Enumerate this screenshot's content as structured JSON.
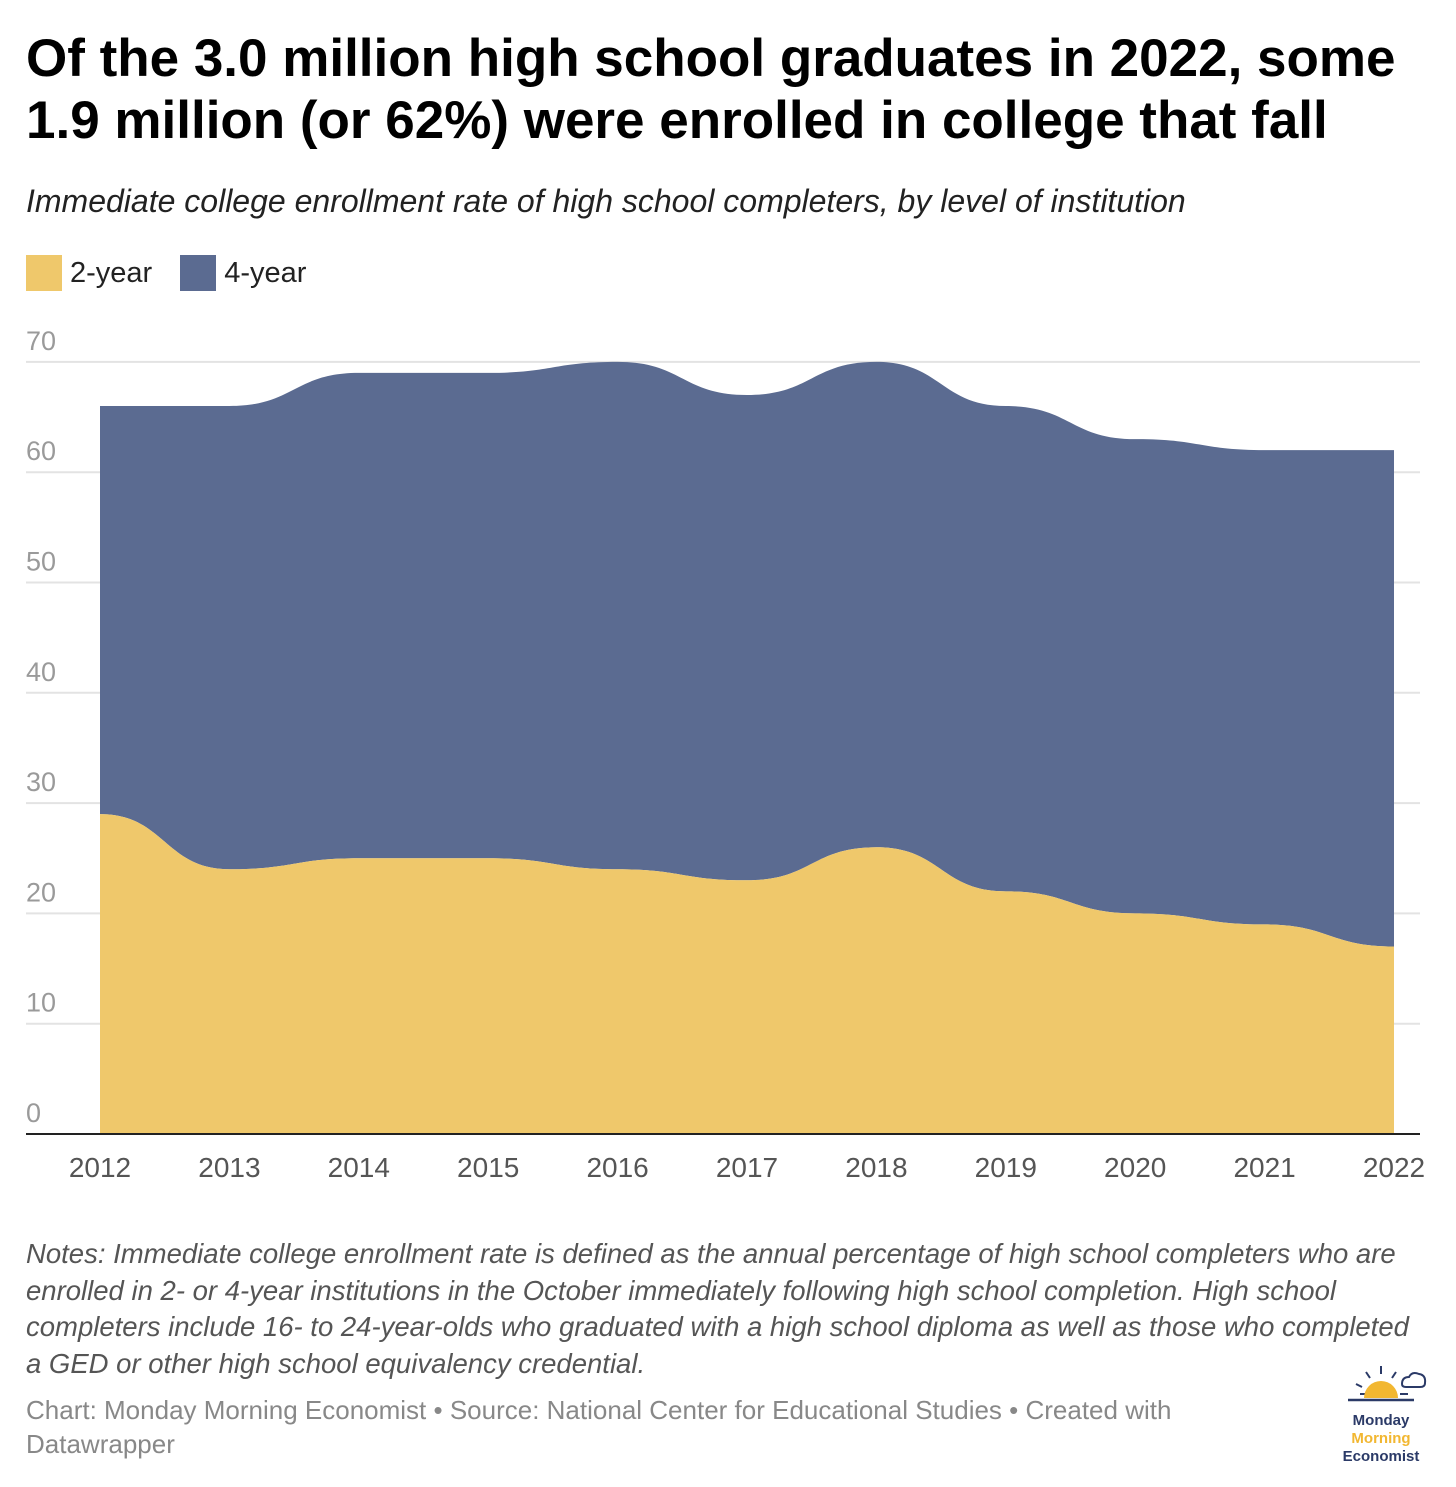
{
  "title": "Of the 3.0 million high school graduates in 2022, some 1.9 million (or 62%) were enrolled in college that fall",
  "subtitle": "Immediate college enrollment rate of high school completers, by level of institution",
  "colors": {
    "two_year": "#efc86b",
    "four_year": "#5b6b91",
    "grid": "#e3e3e3",
    "axis_text": "#9a9a9a",
    "year_text": "#555555"
  },
  "legend": [
    {
      "label": "2-year",
      "color": "#efc86b"
    },
    {
      "label": "4-year",
      "color": "#5b6b91"
    }
  ],
  "chart_data": {
    "type": "area",
    "stacked": true,
    "x": [
      "2012",
      "2013",
      "2014",
      "2015",
      "2016",
      "2017",
      "2018",
      "2019",
      "2020",
      "2021",
      "2022"
    ],
    "series": [
      {
        "name": "2-year",
        "values": [
          29,
          24,
          25,
          25,
          24,
          23,
          26,
          22,
          20,
          19,
          17
        ]
      },
      {
        "name": "4-year",
        "values": [
          37,
          42,
          44,
          44,
          46,
          44,
          44,
          44,
          43,
          43,
          45
        ]
      }
    ],
    "totals": [
      66,
      66,
      69,
      69,
      70,
      67,
      70,
      66,
      63,
      62,
      62
    ],
    "yticks": [
      0,
      10,
      20,
      30,
      40,
      50,
      60,
      70
    ],
    "ylim": [
      0,
      70
    ],
    "grid": true,
    "legend_position": "top-left"
  },
  "notes": "Notes: Immediate college enrollment rate is defined as the annual percentage of high school completers who are enrolled in 2- or 4-year institutions in the October immediately following high school completion. High school completers include 16- to 24-year-olds who graduated with a high school diploma as well as those who completed a GED or other high school equivalency credential.",
  "footer": "Chart: Monday Morning Economist • Source: National Center for Educational Studies • Created with Datawrapper",
  "logo": {
    "line1": "Monday",
    "line2": "Morning",
    "line3": "Economist",
    "icon": "sunrise-cloud-icon"
  }
}
